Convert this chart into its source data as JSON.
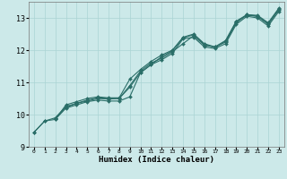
{
  "title": "",
  "xlabel": "Humidex (Indice chaleur)",
  "ylabel": "",
  "xlim": [
    -0.5,
    23.5
  ],
  "ylim": [
    9.0,
    13.5
  ],
  "xticks": [
    0,
    1,
    2,
    3,
    4,
    5,
    6,
    7,
    8,
    9,
    10,
    11,
    12,
    13,
    14,
    15,
    16,
    17,
    18,
    19,
    20,
    21,
    22,
    23
  ],
  "yticks": [
    9,
    10,
    11,
    12,
    13
  ],
  "bg_color": "#cce9e9",
  "line_color": "#2a6e68",
  "grid_color": "#aad4d4",
  "lines": [
    {
      "x": [
        0,
        1,
        2,
        3,
        4,
        5,
        6,
        7,
        8,
        9,
        10,
        11,
        12,
        13,
        14,
        15,
        16,
        17,
        18,
        19,
        20,
        21,
        22,
        23
      ],
      "y": [
        9.45,
        9.8,
        9.85,
        10.2,
        10.3,
        10.4,
        10.45,
        10.42,
        10.42,
        10.55,
        11.3,
        11.55,
        11.7,
        11.9,
        12.35,
        12.4,
        12.1,
        12.05,
        12.2,
        12.8,
        13.05,
        13.0,
        12.75,
        13.2
      ]
    },
    {
      "x": [
        0,
        1,
        2,
        3,
        4,
        5,
        6,
        7,
        8,
        9,
        10,
        11,
        12,
        13,
        14,
        15,
        16,
        17,
        18,
        19,
        20,
        21,
        22,
        23
      ],
      "y": [
        9.45,
        9.8,
        9.9,
        10.25,
        10.35,
        10.42,
        10.5,
        10.48,
        10.5,
        10.9,
        11.35,
        11.6,
        11.75,
        11.95,
        12.2,
        12.45,
        12.15,
        12.1,
        12.25,
        12.85,
        13.1,
        13.05,
        12.8,
        13.25
      ]
    },
    {
      "x": [
        2,
        3,
        4,
        5,
        6,
        7,
        8,
        9,
        10,
        11,
        12,
        13,
        14,
        15,
        16,
        17,
        18,
        19,
        20,
        21,
        22,
        23
      ],
      "y": [
        9.85,
        10.3,
        10.4,
        10.5,
        10.55,
        10.52,
        10.52,
        11.1,
        11.4,
        11.65,
        11.85,
        12.0,
        12.4,
        12.5,
        12.2,
        12.1,
        12.3,
        12.9,
        13.1,
        13.08,
        12.85,
        13.3
      ]
    },
    {
      "x": [
        2,
        3,
        4,
        5,
        6,
        7,
        8,
        9,
        10,
        11,
        12,
        13,
        14,
        15,
        16,
        17,
        18,
        19,
        20,
        21,
        22,
        23
      ],
      "y": [
        9.9,
        10.22,
        10.35,
        10.45,
        10.52,
        10.5,
        10.5,
        10.85,
        11.3,
        11.55,
        11.8,
        11.98,
        12.38,
        12.48,
        12.18,
        12.08,
        12.28,
        12.88,
        13.08,
        13.05,
        12.82,
        13.28
      ]
    }
  ]
}
